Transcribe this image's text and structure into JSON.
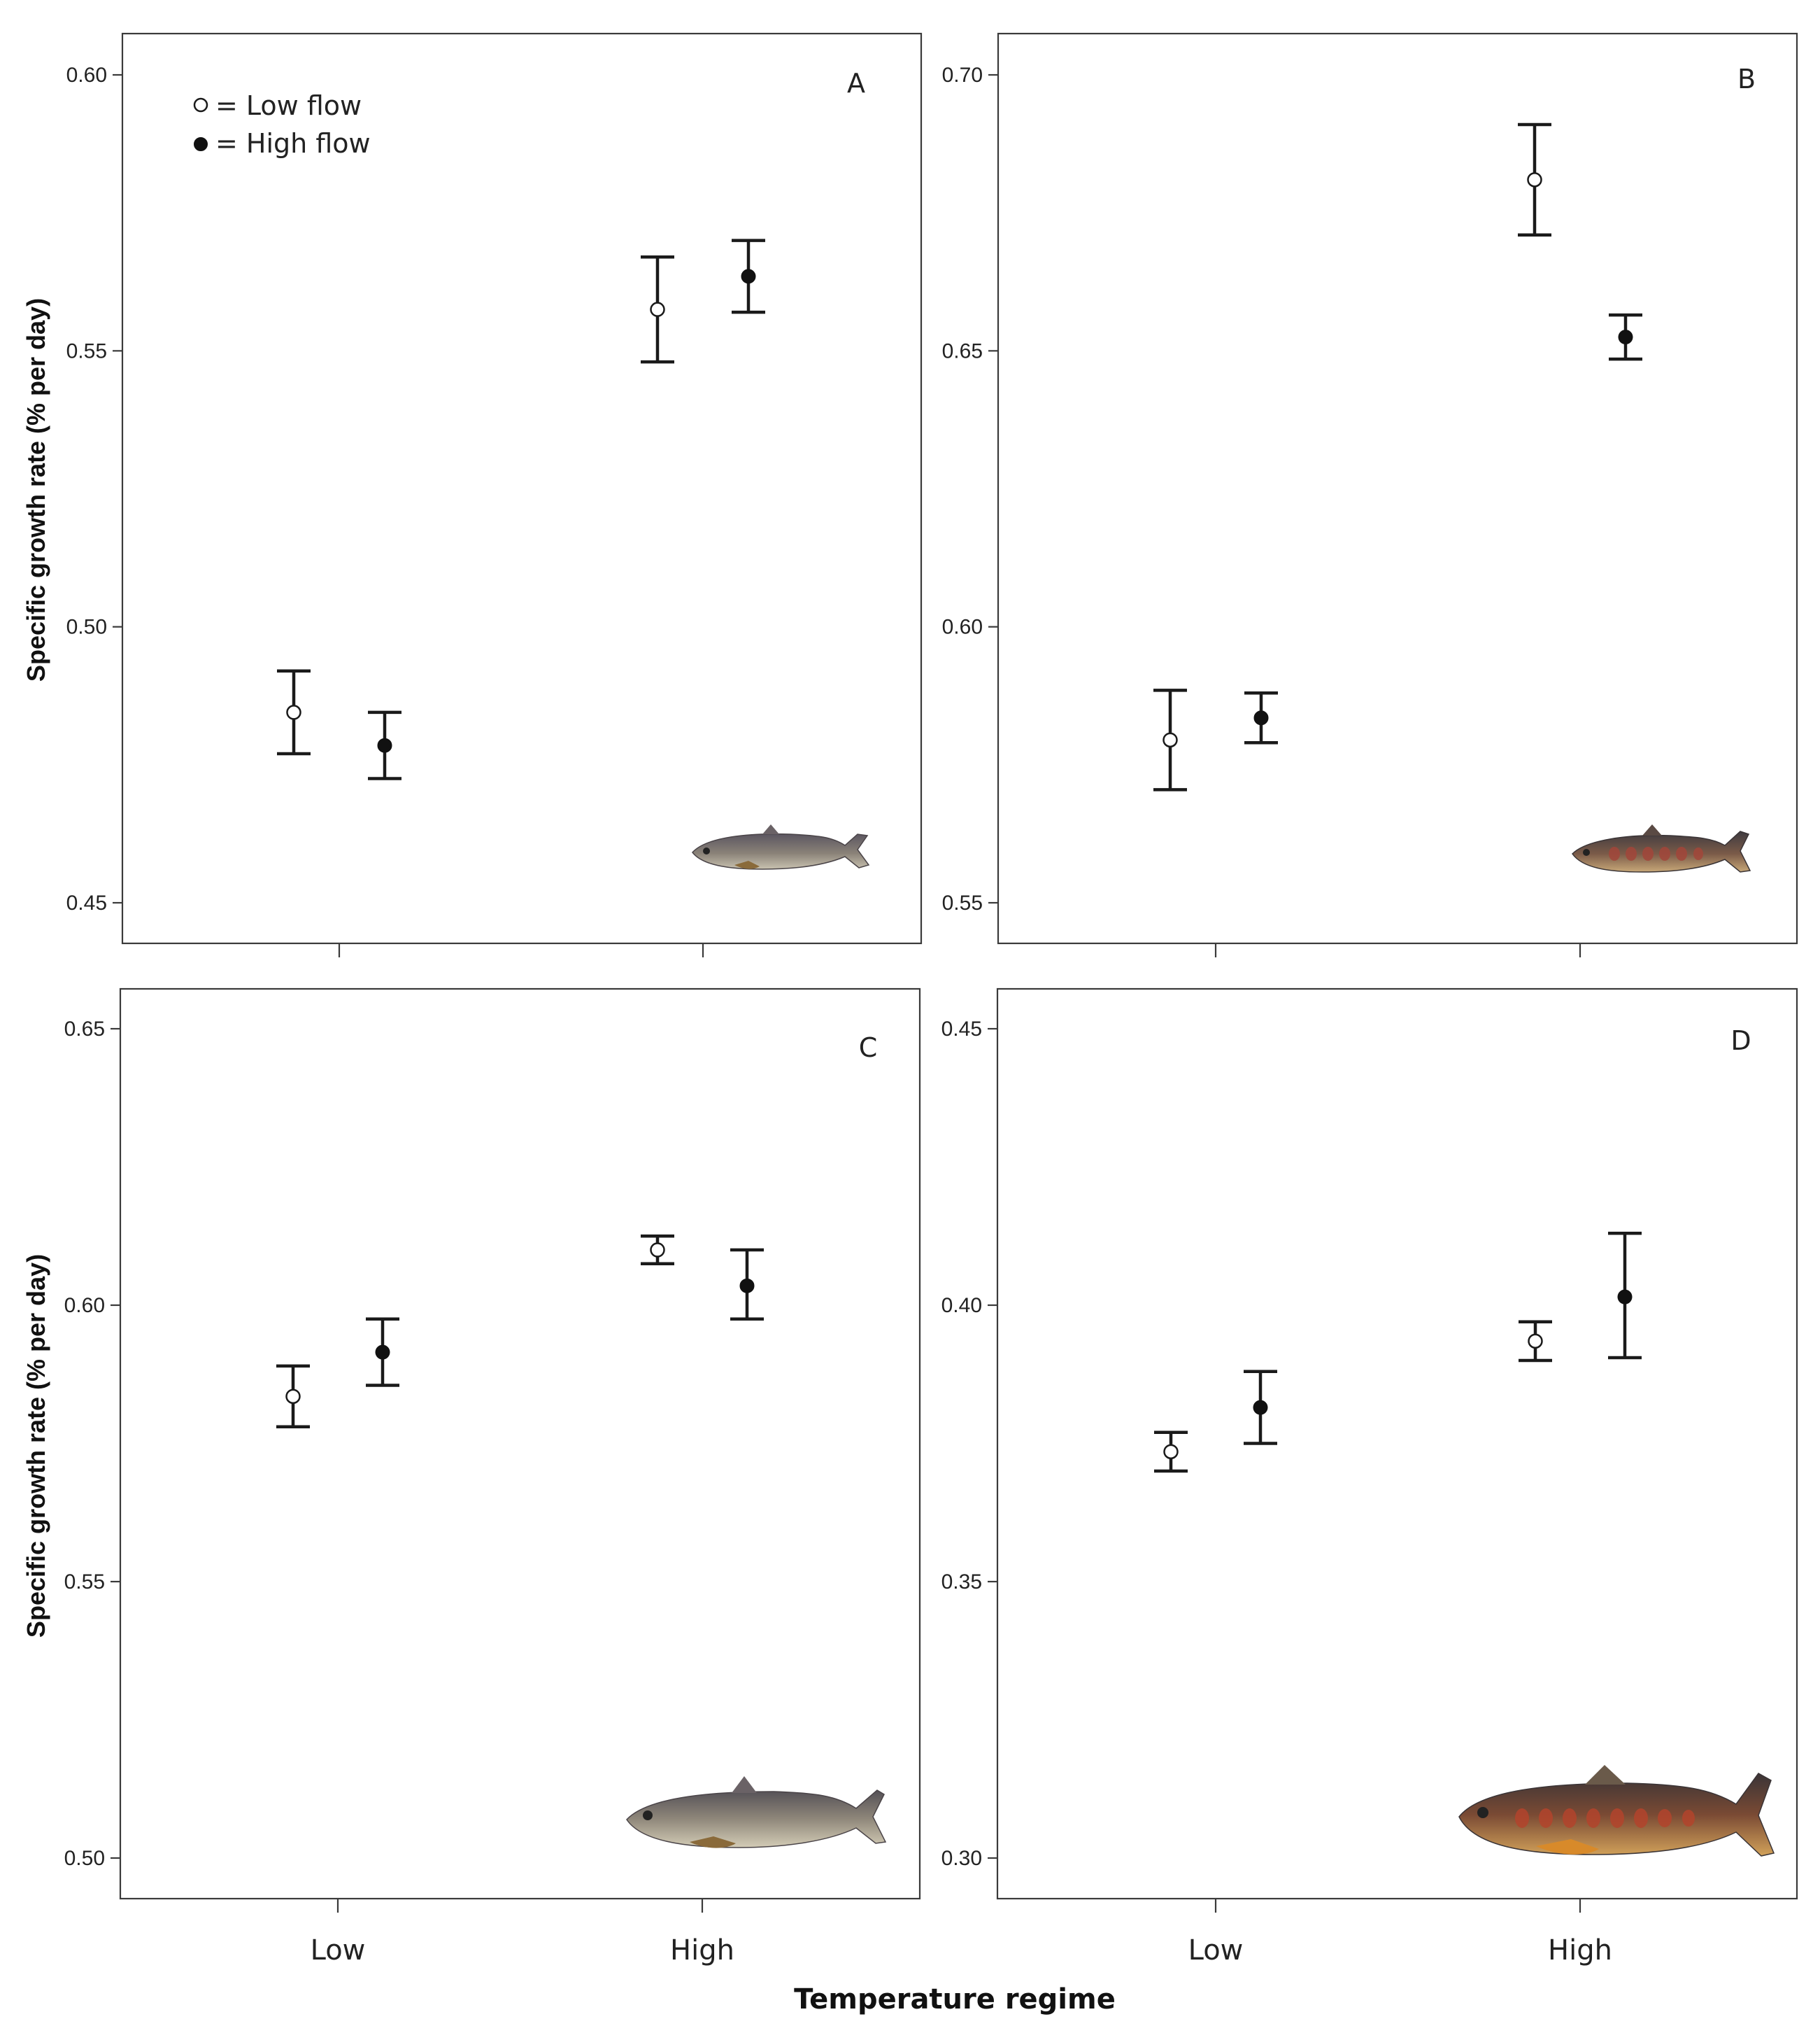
{
  "figure": {
    "y_axis_label": "Specific growth rate (% per day)",
    "x_axis_label": "Temperature regime",
    "legend": {
      "low_flow": "= Low flow",
      "high_flow": "= High flow"
    },
    "colors": {
      "low_flow_fill": "#ffffff",
      "high_flow_fill": "#111111",
      "frame": "#3a3a3a"
    }
  },
  "chart_data": [
    {
      "type": "scatter",
      "panel": "A",
      "categories": [
        "Low",
        "High"
      ],
      "ylim": [
        0.45,
        0.6
      ],
      "yticks": [
        "0.45",
        "0.50",
        "0.55",
        "0.60"
      ],
      "ytick_values": [
        0.45,
        0.5,
        0.55,
        0.6
      ],
      "xlabel": "",
      "ylabel": "Specific growth rate (% per day)",
      "series": [
        {
          "name": "Low flow",
          "means": [
            0.4845,
            0.5575
          ],
          "lower": [
            0.477,
            0.548
          ],
          "upper": [
            0.492,
            0.567
          ]
        },
        {
          "name": "High flow",
          "means": [
            0.4785,
            0.5635
          ],
          "lower": [
            0.4725,
            0.557
          ],
          "upper": [
            0.4845,
            0.57
          ]
        }
      ]
    },
    {
      "type": "scatter",
      "panel": "B",
      "categories": [
        "Low",
        "High"
      ],
      "ylim": [
        0.55,
        0.7
      ],
      "yticks": [
        "0.55",
        "0.60",
        "0.65",
        "0.70"
      ],
      "ytick_values": [
        0.55,
        0.6,
        0.65,
        0.7
      ],
      "xlabel": "",
      "ylabel": "",
      "series": [
        {
          "name": "Low flow",
          "means": [
            0.5795,
            0.681
          ],
          "lower": [
            0.5705,
            0.671
          ],
          "upper": [
            0.5885,
            0.691
          ]
        },
        {
          "name": "High flow",
          "means": [
            0.5835,
            0.6525
          ],
          "lower": [
            0.579,
            0.6485
          ],
          "upper": [
            0.588,
            0.6565
          ]
        }
      ]
    },
    {
      "type": "scatter",
      "panel": "C",
      "categories": [
        "Low",
        "High"
      ],
      "ylim": [
        0.5,
        0.65
      ],
      "yticks": [
        "0.50",
        "0.55",
        "0.60",
        "0.65"
      ],
      "ytick_values": [
        0.5,
        0.55,
        0.6,
        0.65
      ],
      "xlabel": "",
      "ylabel": "Specific growth rate (% per day)",
      "series": [
        {
          "name": "Low flow",
          "means": [
            0.5835,
            0.61
          ],
          "lower": [
            0.578,
            0.6075
          ],
          "upper": [
            0.589,
            0.6125
          ]
        },
        {
          "name": "High flow",
          "means": [
            0.5915,
            0.6035
          ],
          "lower": [
            0.5855,
            0.5975
          ],
          "upper": [
            0.5975,
            0.61
          ]
        }
      ]
    },
    {
      "type": "scatter",
      "panel": "D",
      "categories": [
        "Low",
        "High"
      ],
      "ylim": [
        0.3,
        0.45
      ],
      "yticks": [
        "0.30",
        "0.35",
        "0.40",
        "0.45"
      ],
      "ytick_values": [
        0.3,
        0.35,
        0.4,
        0.45
      ],
      "xlabel": "",
      "ylabel": "",
      "series": [
        {
          "name": "Low flow",
          "means": [
            0.3735,
            0.3935
          ],
          "lower": [
            0.37,
            0.39
          ],
          "upper": [
            0.377,
            0.397
          ]
        },
        {
          "name": "High flow",
          "means": [
            0.3815,
            0.4015
          ],
          "lower": [
            0.375,
            0.3905
          ],
          "upper": [
            0.388,
            0.413
          ]
        }
      ]
    }
  ]
}
